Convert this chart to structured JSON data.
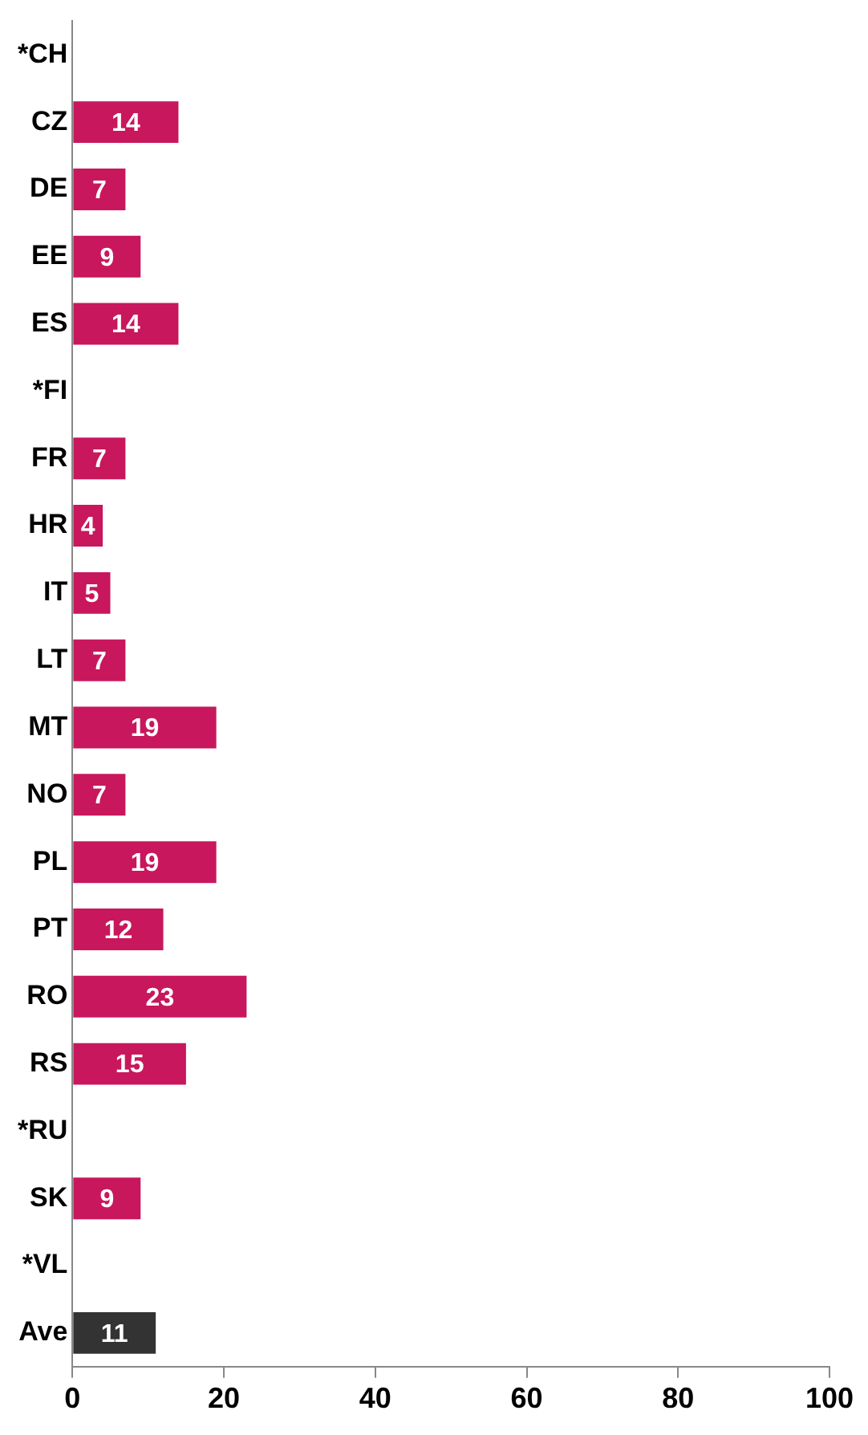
{
  "chart_data": {
    "type": "bar",
    "orientation": "horizontal",
    "categories": [
      "*CH",
      "CZ",
      "DE",
      "EE",
      "ES",
      "*FI",
      "FR",
      "HR",
      "IT",
      "LT",
      "MT",
      "NO",
      "PL",
      "PT",
      "RO",
      "RS",
      "*RU",
      "SK",
      "*VL",
      "Ave"
    ],
    "values": [
      null,
      14,
      7,
      9,
      14,
      null,
      7,
      4,
      5,
      7,
      19,
      7,
      19,
      12,
      23,
      15,
      null,
      9,
      null,
      11
    ],
    "colors": [
      "#c8175d",
      "#c8175d",
      "#c8175d",
      "#c8175d",
      "#c8175d",
      "#c8175d",
      "#c8175d",
      "#c8175d",
      "#c8175d",
      "#c8175d",
      "#c8175d",
      "#c8175d",
      "#c8175d",
      "#c8175d",
      "#c8175d",
      "#c8175d",
      "#c8175d",
      "#c8175d",
      "#c8175d",
      "#333333"
    ],
    "xlim": [
      0,
      100
    ],
    "xticks": [
      0,
      20,
      40,
      60,
      80,
      100
    ],
    "data_labels": true,
    "grid": false,
    "legend": false
  }
}
